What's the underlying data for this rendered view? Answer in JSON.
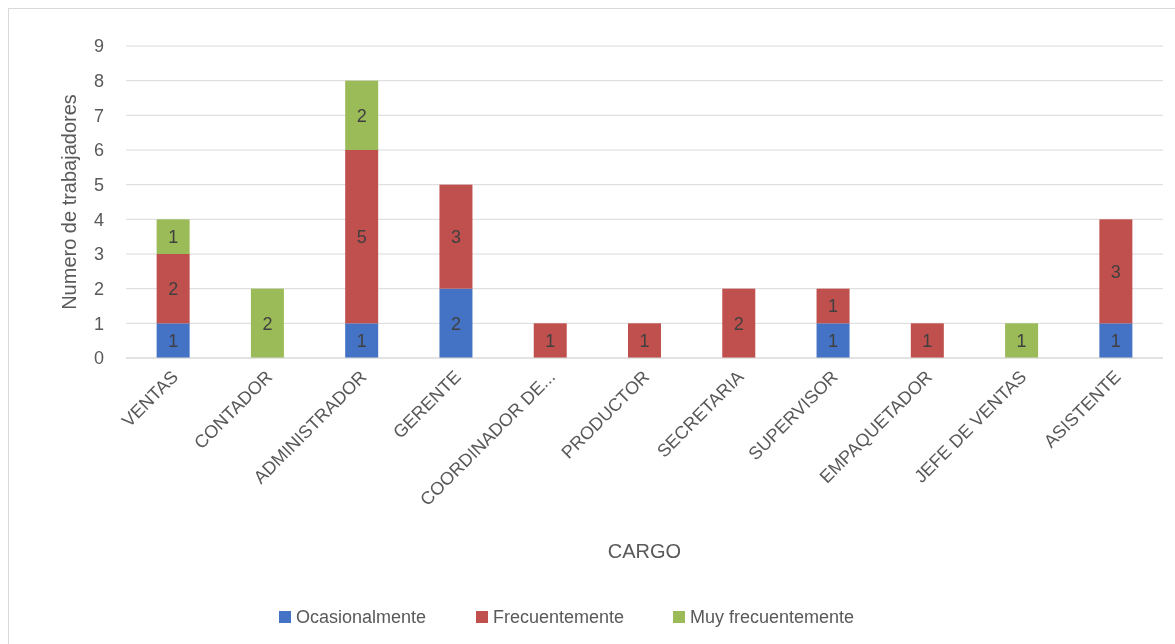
{
  "chart_data": {
    "type": "bar",
    "stacked": true,
    "xlabel": "CARGO",
    "ylabel": "Numero de trabajadores",
    "categories": [
      "VENTAS",
      "CONTADOR",
      "ADMINISTRADOR",
      "GERENTE",
      "COORDINADOR DE...",
      "PRODUCTOR",
      "SECRETARIA",
      "SUPERVISOR",
      "EMPAQUETADOR",
      "JEFE DE VENTAS",
      "ASISTENTE"
    ],
    "series": [
      {
        "name": "Ocasionalmente",
        "color": "#4472c4",
        "values": [
          1,
          null,
          1,
          2,
          null,
          null,
          null,
          1,
          null,
          null,
          1
        ]
      },
      {
        "name": "Frecuentemente",
        "color": "#c0504d",
        "values": [
          2,
          null,
          5,
          3,
          1,
          1,
          2,
          1,
          1,
          null,
          3
        ]
      },
      {
        "name": "Muy frecuentemente",
        "color": "#9bbb59",
        "values": [
          1,
          2,
          2,
          null,
          null,
          null,
          null,
          null,
          null,
          1,
          null
        ]
      }
    ],
    "ylim": [
      0,
      9
    ],
    "yticks": [
      0,
      1,
      2,
      3,
      4,
      5,
      6,
      7,
      8,
      9
    ],
    "grid": "y",
    "legend": "bottom",
    "data_labels": true
  }
}
